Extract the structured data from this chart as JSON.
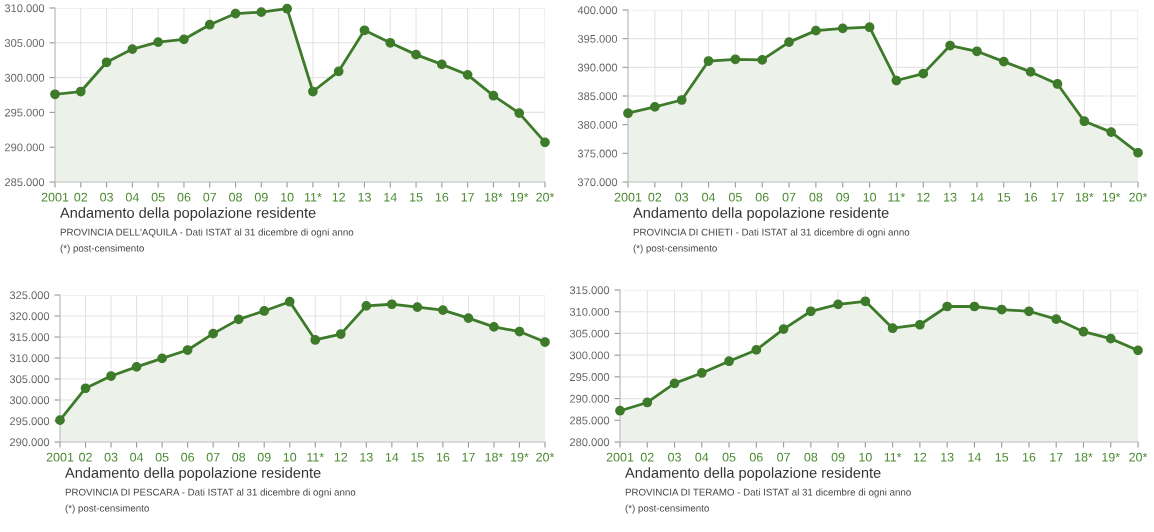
{
  "chart_data": [
    {
      "type": "area",
      "title": "Andamento della popolazione residente",
      "subtitle": "PROVINCIA DELL'AQUILA - Dati ISTAT al 31 dicembre di ogni anno",
      "annotations": [
        "(*) post-censimento"
      ],
      "categories": [
        "2001",
        "02",
        "03",
        "04",
        "05",
        "06",
        "07",
        "08",
        "09",
        "10",
        "11*",
        "12",
        "13",
        "14",
        "15",
        "16",
        "17",
        "18*",
        "19*",
        "20*"
      ],
      "series": [
        {
          "color": "#3d7a2a",
          "values": [
            297600,
            298000,
            302200,
            304100,
            305100,
            305500,
            307600,
            309200,
            309400,
            309900,
            298000,
            300900,
            306800,
            305000,
            303300,
            301900,
            300400,
            297400,
            294900,
            290700
          ]
        }
      ],
      "ylim": [
        285000,
        310000
      ],
      "yticks": [
        {
          "value": 285000,
          "label": "285.000"
        },
        {
          "value": 290000,
          "label": "290.000"
        },
        {
          "value": 295000,
          "label": "295.000"
        },
        {
          "value": 300000,
          "label": "300.000"
        },
        {
          "value": 305000,
          "label": "305.000"
        },
        {
          "value": 310000,
          "label": "310.000"
        }
      ],
      "grid": true,
      "marker": "circle",
      "legend": false
    },
    {
      "type": "area",
      "title": "Andamento della popolazione residente",
      "subtitle": "PROVINCIA DI CHIETI - Dati ISTAT al 31 dicembre di ogni anno",
      "annotations": [
        "(*) post-censimento"
      ],
      "categories": [
        "2001",
        "02",
        "03",
        "04",
        "05",
        "06",
        "07",
        "08",
        "09",
        "10",
        "11*",
        "12",
        "13",
        "14",
        "15",
        "16",
        "17",
        "18*",
        "19*",
        "20*"
      ],
      "series": [
        {
          "color": "#3d7a2a",
          "values": [
            382000,
            383100,
            384300,
            391100,
            391400,
            391300,
            394400,
            396400,
            396800,
            397000,
            387700,
            388900,
            393800,
            392800,
            391000,
            389200,
            387100,
            380600,
            378700,
            375100
          ]
        }
      ],
      "ylim": [
        370000,
        400000
      ],
      "yticks": [
        {
          "value": 370000,
          "label": "370.000"
        },
        {
          "value": 375000,
          "label": "375.000"
        },
        {
          "value": 380000,
          "label": "380.000"
        },
        {
          "value": 385000,
          "label": "385.000"
        },
        {
          "value": 390000,
          "label": "390.000"
        },
        {
          "value": 395000,
          "label": "395.000"
        },
        {
          "value": 400000,
          "label": "400.000"
        }
      ],
      "grid": true,
      "marker": "circle",
      "legend": false
    },
    {
      "type": "area",
      "title": "Andamento della popolazione residente",
      "subtitle": "PROVINCIA DI PESCARA - Dati ISTAT al 31 dicembre di ogni anno",
      "annotations": [
        "(*) post-censimento"
      ],
      "categories": [
        "2001",
        "02",
        "03",
        "04",
        "05",
        "06",
        "07",
        "08",
        "09",
        "10",
        "11*",
        "12",
        "13",
        "14",
        "15",
        "16",
        "17",
        "18*",
        "19*",
        "20*"
      ],
      "series": [
        {
          "color": "#3d7a2a",
          "values": [
            295200,
            302800,
            305700,
            307900,
            309900,
            311900,
            315800,
            319200,
            321200,
            323400,
            314300,
            315700,
            322400,
            322800,
            322100,
            321400,
            319500,
            317400,
            316300,
            313800
          ]
        }
      ],
      "ylim": [
        290000,
        325000
      ],
      "yticks": [
        {
          "value": 290000,
          "label": "290.000"
        },
        {
          "value": 295000,
          "label": "295.000"
        },
        {
          "value": 300000,
          "label": "300.000"
        },
        {
          "value": 305000,
          "label": "305.000"
        },
        {
          "value": 310000,
          "label": "310.000"
        },
        {
          "value": 315000,
          "label": "315.000"
        },
        {
          "value": 320000,
          "label": "320.000"
        },
        {
          "value": 325000,
          "label": "325.000"
        }
      ],
      "grid": true,
      "marker": "circle",
      "legend": false
    },
    {
      "type": "area",
      "title": "Andamento della popolazione residente",
      "subtitle": "PROVINCIA DI TERAMO - Dati ISTAT al 31 dicembre di ogni anno",
      "annotations": [
        "(*) post-censimento"
      ],
      "categories": [
        "2001",
        "02",
        "03",
        "04",
        "05",
        "06",
        "07",
        "08",
        "09",
        "10",
        "11*",
        "12",
        "13",
        "14",
        "15",
        "16",
        "17",
        "18*",
        "19*",
        "20*"
      ],
      "series": [
        {
          "color": "#3d7a2a",
          "values": [
            287200,
            289100,
            293500,
            295900,
            298600,
            301200,
            306000,
            310100,
            311700,
            312400,
            306200,
            307000,
            311200,
            311200,
            310500,
            310100,
            308300,
            305400,
            303800,
            301100
          ]
        }
      ],
      "ylim": [
        280000,
        315000
      ],
      "yticks": [
        {
          "value": 280000,
          "label": "280.000"
        },
        {
          "value": 285000,
          "label": "285.000"
        },
        {
          "value": 290000,
          "label": "290.000"
        },
        {
          "value": 295000,
          "label": "295.000"
        },
        {
          "value": 300000,
          "label": "300.000"
        },
        {
          "value": 305000,
          "label": "305.000"
        },
        {
          "value": 310000,
          "label": "310.000"
        },
        {
          "value": 315000,
          "label": "315.000"
        }
      ],
      "grid": true,
      "marker": "circle",
      "legend": false
    }
  ]
}
